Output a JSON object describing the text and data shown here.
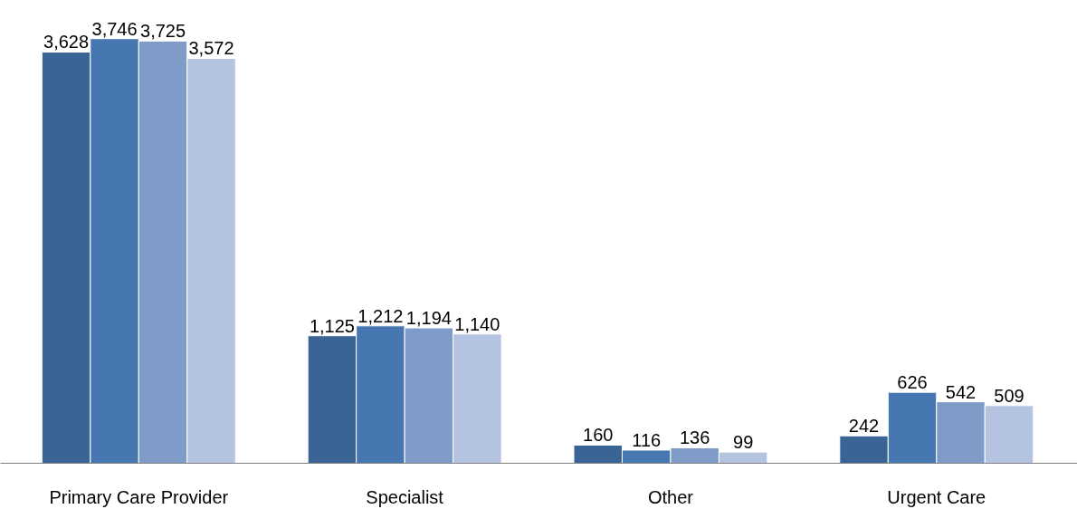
{
  "chart_data": {
    "type": "bar",
    "categories": [
      "Primary Care Provider",
      "Specialist",
      "Other",
      "Urgent Care"
    ],
    "series": [
      {
        "color": "#3b6496",
        "values": [
          3628,
          1125,
          160,
          242
        ],
        "value_labels": [
          "3,628",
          "1,125",
          "160",
          "242"
        ]
      },
      {
        "color": "#4677b0",
        "values": [
          3746,
          1212,
          116,
          626
        ],
        "value_labels": [
          "3,746",
          "1,212",
          "116",
          "626"
        ]
      },
      {
        "color": "#7f9bc7",
        "values": [
          3725,
          1194,
          136,
          542
        ],
        "value_labels": [
          "3,725",
          "1,194",
          "136",
          "542"
        ]
      },
      {
        "color": "#b4c3df",
        "values": [
          3572,
          1140,
          99,
          509
        ],
        "value_labels": [
          "3,572",
          "1,140",
          "99",
          "509"
        ]
      }
    ],
    "grid": false
  }
}
